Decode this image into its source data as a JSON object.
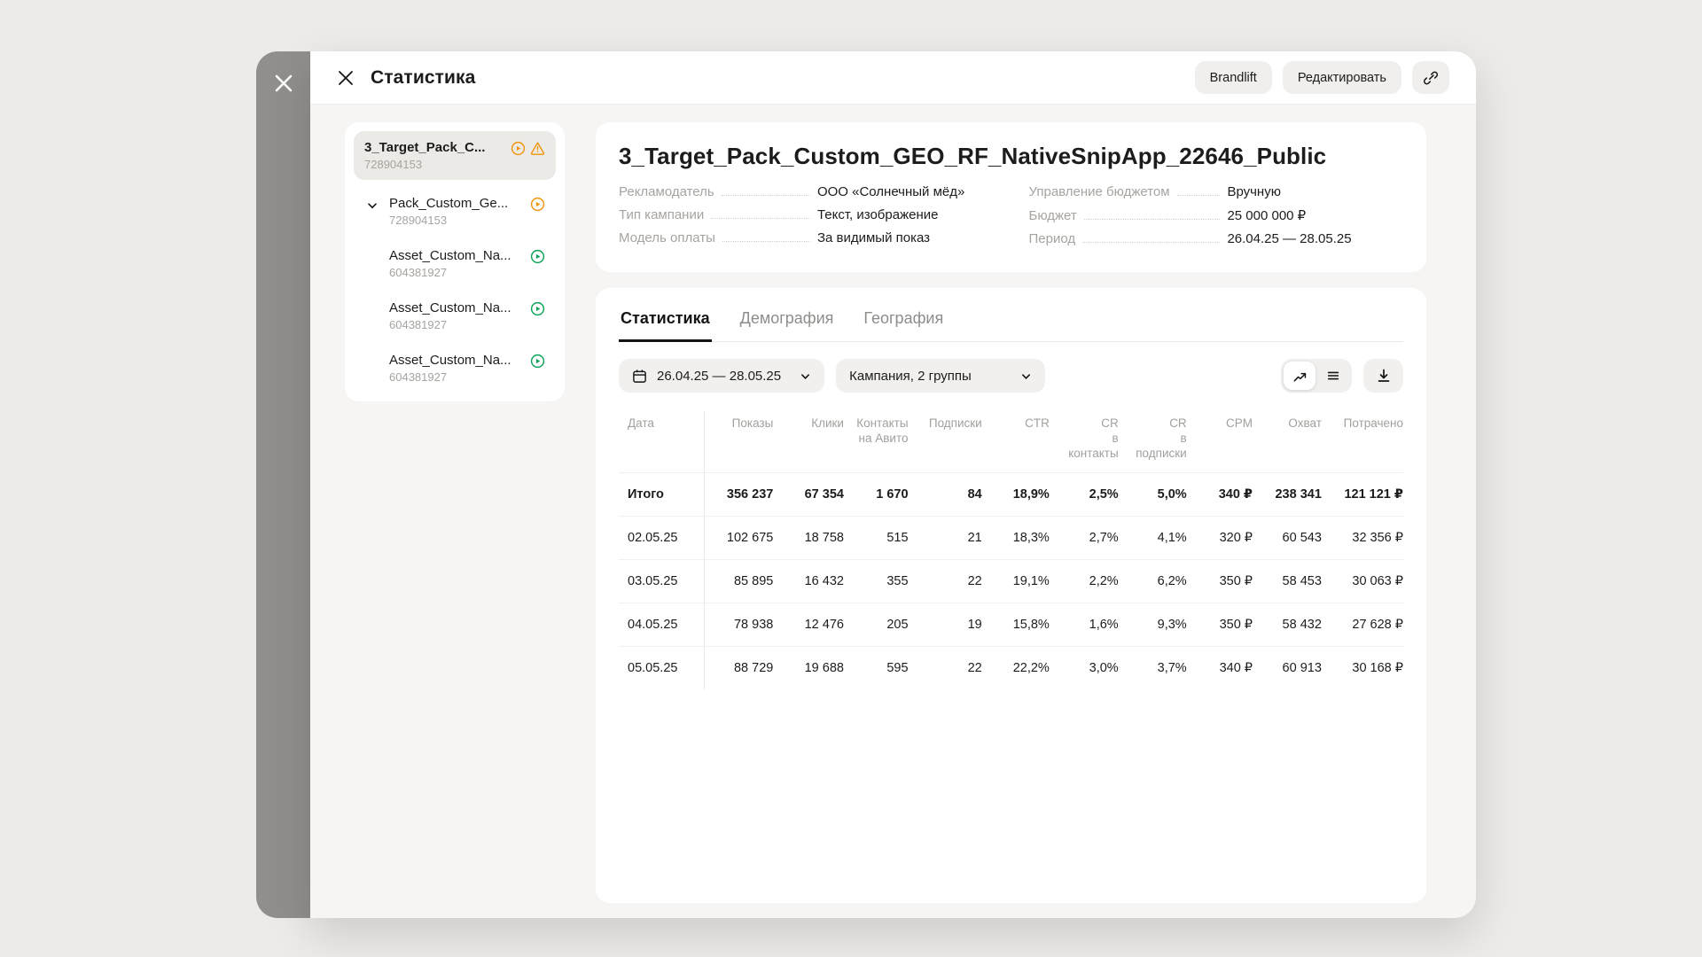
{
  "header": {
    "title": "Статистика",
    "brandlift_label": "Brandlift",
    "edit_label": "Редактировать"
  },
  "sidebar": {
    "items": [
      {
        "label": "3_Target_Pack_C...",
        "id": "728904153",
        "type": "root",
        "selected": true,
        "icons": [
          "play-orange",
          "warning-orange"
        ]
      },
      {
        "label": "Pack_Custom_Ge...",
        "id": "728904153",
        "type": "group",
        "expanded": true,
        "icons": [
          "play-orange"
        ]
      },
      {
        "label": "Asset_Custom_Na...",
        "id": "604381927",
        "type": "asset",
        "icons": [
          "play-green"
        ]
      },
      {
        "label": "Asset_Custom_Na...",
        "id": "604381927",
        "type": "asset",
        "icons": [
          "play-green"
        ]
      },
      {
        "label": "Asset_Custom_Na...",
        "id": "604381927",
        "type": "asset",
        "icons": [
          "play-green"
        ]
      }
    ]
  },
  "campaign": {
    "title": "3_Target_Pack_Custom_GEO_RF_NativeSnipApp_22646_Public",
    "meta_left": [
      {
        "label": "Рекламодатель",
        "value": "ООО «Солнечный мёд»"
      },
      {
        "label": "Тип кампании",
        "value": "Текст, изображение"
      },
      {
        "label": "Модель оплаты",
        "value": "За видимый показ"
      }
    ],
    "meta_right": [
      {
        "label": "Управление бюджетом",
        "value": "Вручную"
      },
      {
        "label": "Бюджет",
        "value": "25 000 000 ₽"
      },
      {
        "label": "Период",
        "value": "26.04.25 — 28.05.25"
      }
    ]
  },
  "stats": {
    "tabs": [
      {
        "label": "Статистика",
        "active": true
      },
      {
        "label": "Демография",
        "active": false
      },
      {
        "label": "География",
        "active": false
      }
    ],
    "date_range": "26.04.25 — 28.05.25",
    "group_filter": "Кампания, 2 группы",
    "table": {
      "columns": [
        "Дата",
        "Показы",
        "Клики",
        "Контакты\nна Авито",
        "Подписки",
        "CTR",
        "CR\nв контакты",
        "CR\nв подписки",
        "CPM",
        "Охват",
        "Потрачено"
      ],
      "total_row": [
        "Итого",
        "356 237",
        "67 354",
        "1 670",
        "84",
        "18,9%",
        "2,5%",
        "5,0%",
        "340 ₽",
        "238 341",
        "121 121 ₽"
      ],
      "rows": [
        [
          "02.05.25",
          "102 675",
          "18 758",
          "515",
          "21",
          "18,3%",
          "2,7%",
          "4,1%",
          "320 ₽",
          "60 543",
          "32 356 ₽"
        ],
        [
          "03.05.25",
          "85 895",
          "16 432",
          "355",
          "22",
          "19,1%",
          "2,2%",
          "6,2%",
          "350 ₽",
          "58 453",
          "30 063 ₽"
        ],
        [
          "04.05.25",
          "78 938",
          "12 476",
          "205",
          "19",
          "15,8%",
          "1,6%",
          "9,3%",
          "350 ₽",
          "58 432",
          "27 628 ₽"
        ],
        [
          "05.05.25",
          "88 729",
          "19 688",
          "595",
          "22",
          "22,2%",
          "3,0%",
          "3,7%",
          "340 ₽",
          "60 913",
          "30 168 ₽"
        ]
      ]
    }
  },
  "colors": {
    "status_active_orange": "#f0940c",
    "status_active_green": "#0aa357",
    "accent_text": "#141414"
  }
}
